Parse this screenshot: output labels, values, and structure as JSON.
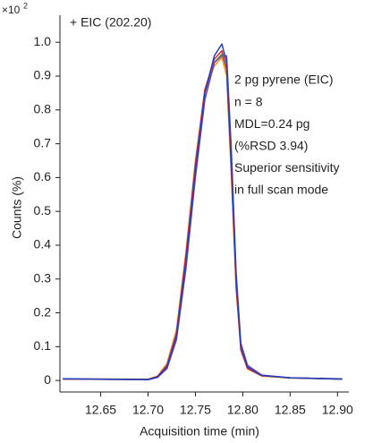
{
  "chart_data": {
    "type": "line",
    "title": "+ EIC (202.20)",
    "x_label": "Acquisition time (min)",
    "y_label": "Counts (%)",
    "y_multiplier": {
      "base": "×10",
      "exponent": "2"
    },
    "annotation_lines": [
      "2 pg pyrene (EIC)",
      "n = 8",
      "MDL=0.24 pg",
      "(%RSD 3.94)",
      "Superior sensitivity",
      "in full scan mode"
    ],
    "x": [
      12.61,
      12.7,
      12.71,
      12.72,
      12.73,
      12.74,
      12.75,
      12.76,
      12.77,
      12.778,
      12.783,
      12.788,
      12.793,
      12.798,
      12.805,
      12.82,
      12.85,
      12.905
    ],
    "series": [
      {
        "color": "#e8a020",
        "values": [
          0.005,
          0.004,
          0.013,
          0.05,
          0.15,
          0.38,
          0.65,
          0.86,
          0.93,
          0.955,
          0.9,
          0.6,
          0.27,
          0.09,
          0.035,
          0.013,
          0.007,
          0.004
        ]
      },
      {
        "color": "#3aa040",
        "values": [
          0.004,
          0.003,
          0.011,
          0.042,
          0.13,
          0.36,
          0.63,
          0.85,
          0.94,
          0.965,
          0.92,
          0.63,
          0.29,
          0.1,
          0.038,
          0.015,
          0.008,
          0.004
        ]
      },
      {
        "color": "#d03030",
        "values": [
          0.004,
          0.003,
          0.012,
          0.045,
          0.14,
          0.37,
          0.64,
          0.86,
          0.95,
          0.975,
          0.92,
          0.62,
          0.28,
          0.09,
          0.035,
          0.014,
          0.008,
          0.004
        ]
      },
      {
        "color": "#8040a0",
        "values": [
          0.005,
          0.002,
          0.009,
          0.035,
          0.12,
          0.33,
          0.6,
          0.83,
          0.94,
          0.96,
          0.96,
          0.68,
          0.32,
          0.11,
          0.045,
          0.016,
          0.008,
          0.005
        ]
      },
      {
        "color": "#2040c0",
        "values": [
          0.005,
          0.003,
          0.01,
          0.04,
          0.13,
          0.35,
          0.62,
          0.85,
          0.96,
          0.995,
          0.94,
          0.65,
          0.3,
          0.1,
          0.04,
          0.015,
          0.008,
          0.004
        ]
      }
    ],
    "xlim": [
      12.607,
      12.912
    ],
    "ylim": [
      -0.034,
      1.08
    ],
    "xticks": [
      12.65,
      {
        "value": 12.7,
        "label": "12.70"
      },
      12.75,
      {
        "value": 12.8,
        "label": "12.80"
      },
      12.85,
      {
        "value": 12.9,
        "label": "12.90"
      }
    ],
    "yticks": [
      0,
      0.1,
      0.2,
      0.3,
      0.4,
      0.5,
      0.6,
      0.7,
      0.8,
      0.9,
      {
        "value": 1,
        "label": "1.0"
      }
    ],
    "grid": false
  }
}
